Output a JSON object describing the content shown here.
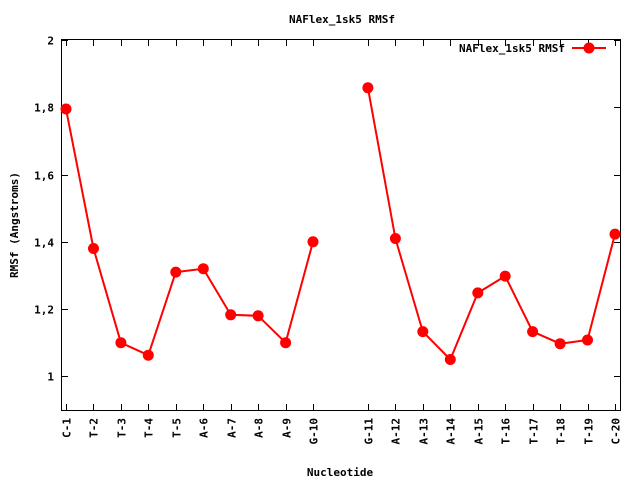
{
  "chart_data": {
    "type": "line",
    "title": "NAFlex_1sk5 RMSf",
    "xlabel": "Nucleotide",
    "ylabel": "RMSf (Angstroms)",
    "ylim": [
      0.9,
      2.0
    ],
    "yticks": [
      1,
      1.2,
      1.4,
      1.6,
      1.8,
      2
    ],
    "ytick_labels": [
      "1",
      "1,2",
      "1,4",
      "1,6",
      "1,8",
      "2"
    ],
    "xlim": [
      1,
      21
    ],
    "grid": false,
    "legend_position": "top-right",
    "categories": [
      "C-1",
      "T-2",
      "T-3",
      "T-4",
      "T-5",
      "A-6",
      "A-7",
      "A-8",
      "A-9",
      "G-10",
      "G-11",
      "A-12",
      "A-13",
      "A-14",
      "A-15",
      "T-16",
      "T-17",
      "T-18",
      "T-19",
      "C-20"
    ],
    "series": [
      {
        "name": "NAFlex_1sk5 RMSf",
        "color": "#ff0000",
        "segments": [
          {
            "x": [
              1,
              2,
              3,
              4,
              5,
              6,
              7,
              8,
              9,
              10
            ],
            "values": [
              1.795,
              1.38,
              1.1,
              1.063,
              1.31,
              1.32,
              1.183,
              1.18,
              1.1,
              1.4
            ]
          },
          {
            "x": [
              12,
              13,
              14,
              15,
              16,
              17,
              18,
              19,
              20,
              21
            ],
            "values": [
              1.858,
              1.41,
              1.133,
              1.05,
              1.248,
              1.298,
              1.133,
              1.097,
              1.108,
              1.423
            ]
          }
        ]
      }
    ]
  }
}
